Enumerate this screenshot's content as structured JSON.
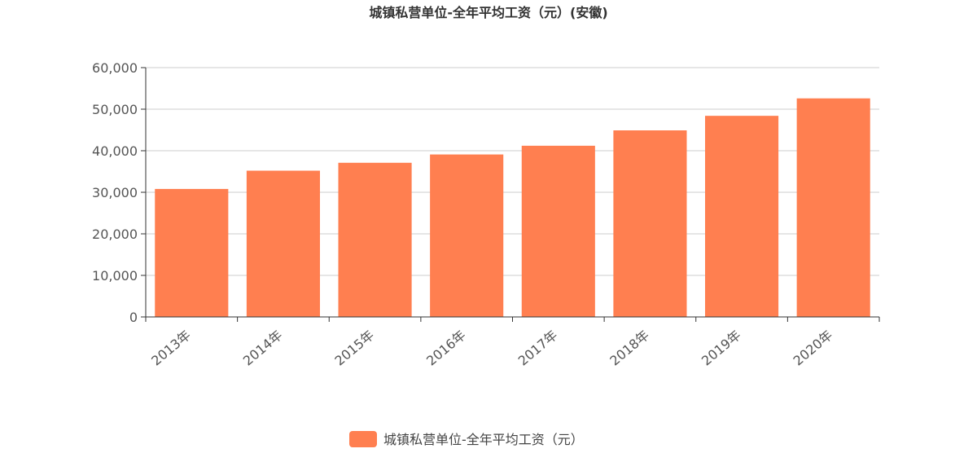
{
  "chart_data": {
    "type": "bar",
    "title": "城镇私营单位-全年平均工资（元）(安徽)",
    "categories": [
      "2013年",
      "2014年",
      "2015年",
      "2016年",
      "2017年",
      "2018年",
      "2019年",
      "2020年"
    ],
    "series": [
      {
        "name": "城镇私营单位-全年平均工资（元）",
        "values": [
          30800,
          35200,
          37100,
          39100,
          41200,
          44900,
          48400,
          52600
        ],
        "color": "#ff7f50"
      }
    ],
    "y_ticks": [
      "0",
      "10,000",
      "20,000",
      "30,000",
      "40,000",
      "50,000",
      "60,000"
    ],
    "ylim": [
      0,
      60000
    ],
    "grid": true,
    "legend_position": "bottom-center",
    "axis_color": "#333333",
    "grid_color": "#cccccc"
  }
}
